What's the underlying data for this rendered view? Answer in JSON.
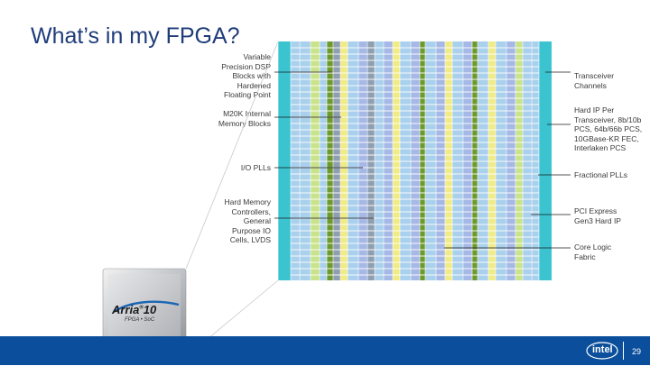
{
  "slide": {
    "title": "What’s in my FPGA?",
    "page_number": "29"
  },
  "left_labels": [
    {
      "id": "dsp",
      "text": "Variable\nPrecision DSP\nBlocks with\nHardened\nFloating Point"
    },
    {
      "id": "m20k",
      "text": "M20K Internal\nMemory Blocks"
    },
    {
      "id": "io-plls",
      "text": "I/O PLLs"
    },
    {
      "id": "hmc",
      "text": "Hard Memory\nControllers,\nGeneral\nPurpose IO\nCells, LVDS"
    }
  ],
  "right_labels": [
    {
      "id": "transceiver",
      "text": "Transceiver\nChannels"
    },
    {
      "id": "hardip",
      "text": "Hard IP Per\nTransceiver, 8b/10b\nPCS, 64b/66b PCS,\n10GBase-KR FEC,\nInterlaken PCS"
    },
    {
      "id": "fplls",
      "text": "Fractional PLLs"
    },
    {
      "id": "pcie",
      "text": "PCI Express\nGen3 Hard IP"
    },
    {
      "id": "core",
      "text": "Core Logic\nFabric"
    }
  ],
  "chip": {
    "brand": "Arria",
    "superscript": "®",
    "number": "10",
    "subtitle": "FPGA • SoC"
  },
  "logo": {
    "text": "intel"
  },
  "colors": {
    "title": "#1f3d7a",
    "footer": "#0b4f9c",
    "teal": "#3bc4d0",
    "core_blue": "#a9d0ec",
    "lavender": "#a5b8e6",
    "mem_yellow": "#f1eb85",
    "io_gray": "#8f9eb0",
    "dsp_green": "#6e9a2b",
    "lime": "#c9e38a"
  }
}
